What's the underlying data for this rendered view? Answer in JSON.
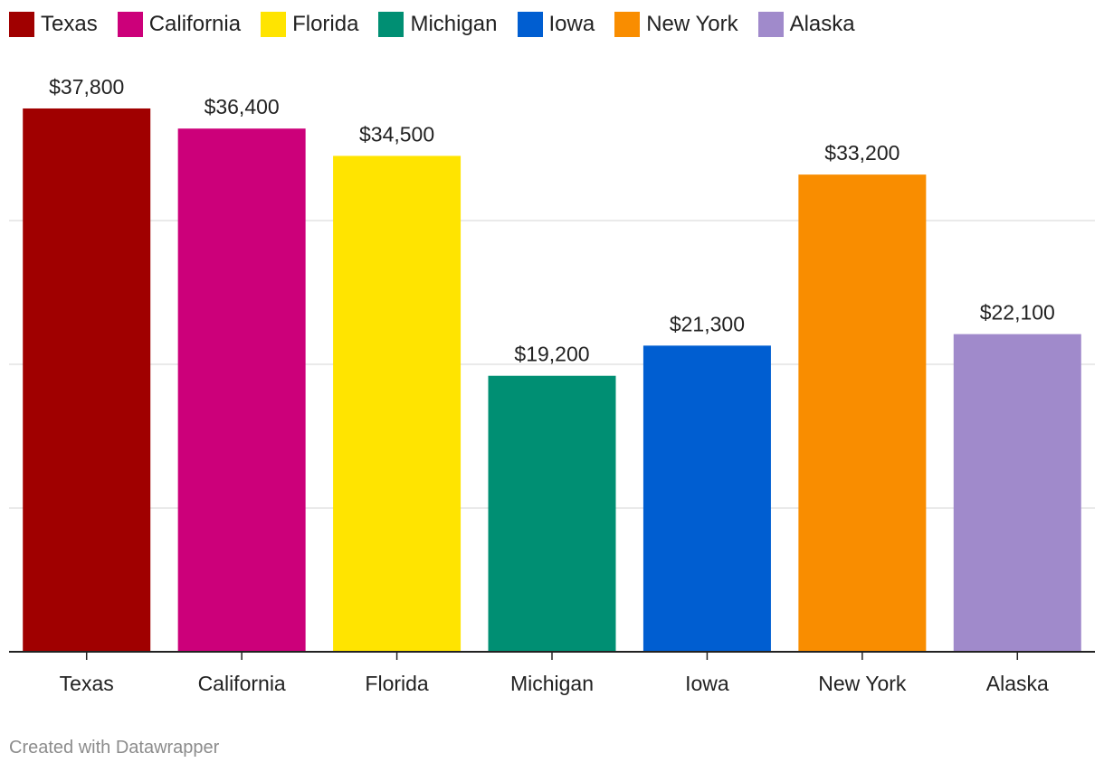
{
  "chart_data": {
    "type": "bar",
    "categories": [
      "Texas",
      "California",
      "Florida",
      "Michigan",
      "Iowa",
      "New York",
      "Alaska"
    ],
    "values": [
      37800,
      36400,
      34500,
      19200,
      21300,
      33200,
      22100
    ],
    "value_labels": [
      "$37,800",
      "$36,400",
      "$34,500",
      "$19,200",
      "$21,300",
      "$33,200",
      "$22,100"
    ],
    "colors": [
      "#a00000",
      "#cc007a",
      "#ffe400",
      "#008f73",
      "#005ed1",
      "#f98d00",
      "#a08acb"
    ],
    "ylim": [
      0,
      40000
    ],
    "gridlines": [
      10000,
      20000,
      30000
    ],
    "grid": true,
    "legend_position": "top-left",
    "title": "",
    "xlabel": "",
    "ylabel": ""
  },
  "legend": {
    "items": [
      {
        "label": "Texas",
        "color": "#a00000"
      },
      {
        "label": "California",
        "color": "#cc007a"
      },
      {
        "label": "Florida",
        "color": "#ffe400"
      },
      {
        "label": "Michigan",
        "color": "#008f73"
      },
      {
        "label": "Iowa",
        "color": "#005ed1"
      },
      {
        "label": "New York",
        "color": "#f98d00"
      },
      {
        "label": "Alaska",
        "color": "#a08acb"
      }
    ]
  },
  "footer": {
    "credit": "Created with Datawrapper"
  }
}
